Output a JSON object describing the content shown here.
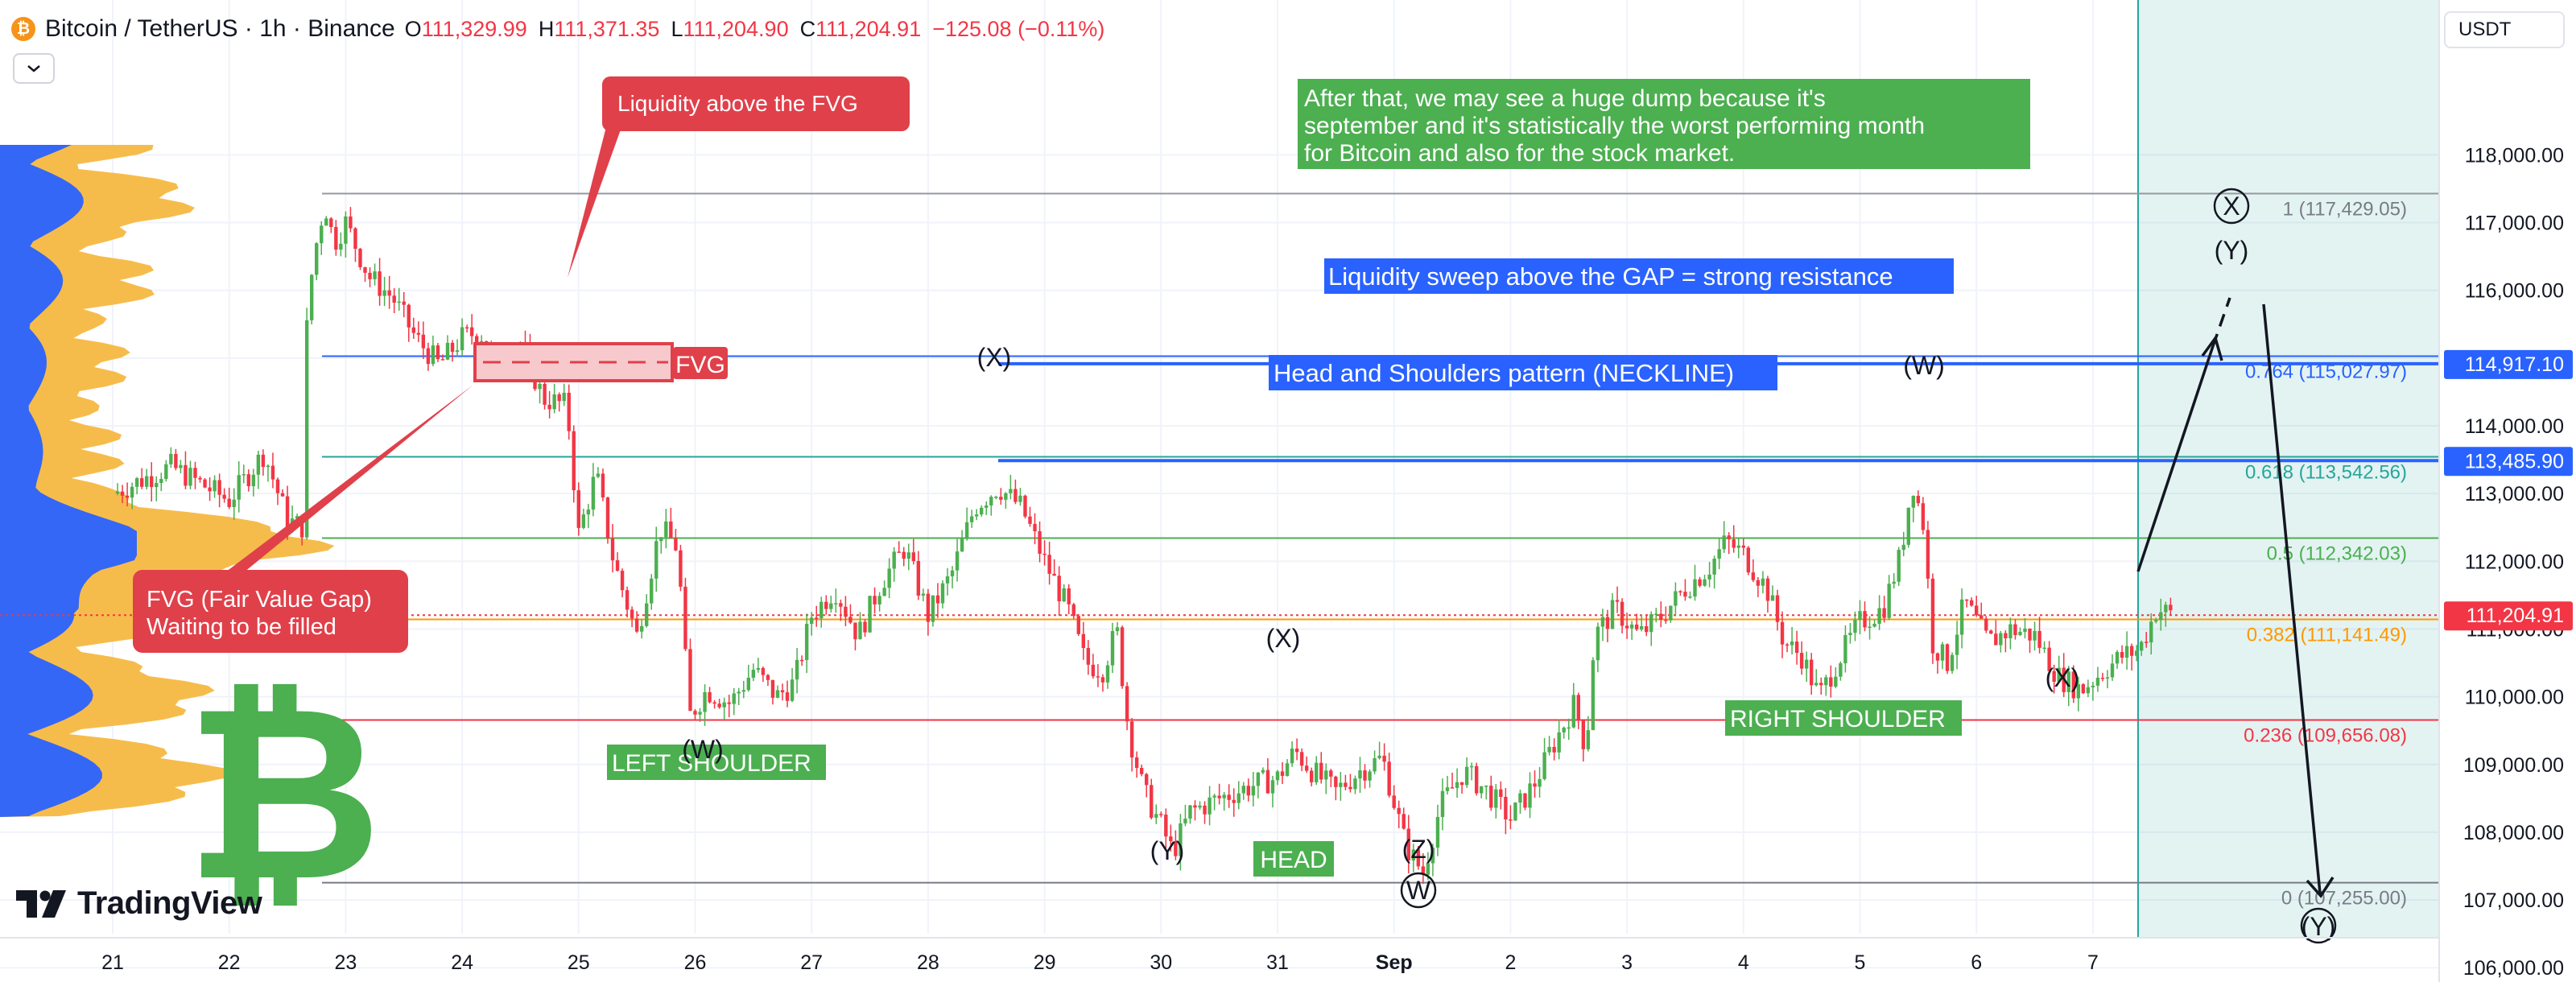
{
  "header": {
    "symbol_title": "Bitcoin / TetherUS · 1h · Binance",
    "symbol_icon": "bitcoin-icon",
    "ohlc": [
      {
        "key": "O",
        "value": "111,329.99"
      },
      {
        "key": "H",
        "value": "111,371.35"
      },
      {
        "key": "L",
        "value": "111,204.90"
      },
      {
        "key": "C",
        "value": "111,204.91"
      }
    ],
    "change": "−125.08 (−0.11%)"
  },
  "currency_label": "USDT",
  "logo_text": "TradingView",
  "colors": {
    "up": "#4caf50",
    "down": "#f23645",
    "blue": "#2962ff",
    "green_box": "#4caf50",
    "red_box": "#e0404a",
    "orange": "#f7931a",
    "profile_blue": "#2962ff",
    "profile_orange": "#f5b841"
  },
  "chart_data": {
    "type": "candlestick",
    "symbol": "BTCUSDT",
    "interval": "1h",
    "ylim": [
      105500,
      119000
    ],
    "y_ticks": [
      "118,000.00",
      "117,000.00",
      "116,000.00",
      "115,000.00",
      "114,000.00",
      "113,000.00",
      "112,000.00",
      "111,000.00",
      "110,000.00",
      "109,000.00",
      "108,000.00",
      "107,000.00",
      "106,000.00"
    ],
    "y_tick_values": [
      118000,
      117000,
      116000,
      115000,
      114000,
      113000,
      112000,
      111000,
      110000,
      109000,
      108000,
      107000,
      106000
    ],
    "x_ticks": [
      {
        "label": "21",
        "day": 21
      },
      {
        "label": "22",
        "day": 22
      },
      {
        "label": "23",
        "day": 23
      },
      {
        "label": "24",
        "day": 24
      },
      {
        "label": "25",
        "day": 25
      },
      {
        "label": "26",
        "day": 26
      },
      {
        "label": "27",
        "day": 27
      },
      {
        "label": "28",
        "day": 28
      },
      {
        "label": "29",
        "day": 29
      },
      {
        "label": "30",
        "day": 30
      },
      {
        "label": "31",
        "day": 31
      },
      {
        "label": "Sep",
        "day": 32,
        "bold": true
      },
      {
        "label": "2",
        "day": 33
      },
      {
        "label": "3",
        "day": 34
      },
      {
        "label": "4",
        "day": 35
      },
      {
        "label": "5",
        "day": 36
      },
      {
        "label": "6",
        "day": 37
      },
      {
        "label": "7",
        "day": 38
      }
    ],
    "price_path": [
      [
        21.0,
        113000
      ],
      [
        21.5,
        113400
      ],
      [
        22.0,
        112900
      ],
      [
        22.3,
        113600
      ],
      [
        22.5,
        112600
      ],
      [
        22.64,
        112500
      ],
      [
        22.67,
        115800
      ],
      [
        22.75,
        116700
      ],
      [
        22.82,
        117300
      ],
      [
        22.9,
        116700
      ],
      [
        23.0,
        117000
      ],
      [
        23.2,
        116200
      ],
      [
        23.4,
        115900
      ],
      [
        23.6,
        115300
      ],
      [
        23.8,
        114900
      ],
      [
        24.0,
        115300
      ],
      [
        24.15,
        115400
      ],
      [
        24.3,
        114900
      ],
      [
        24.5,
        115200
      ],
      [
        24.7,
        114400
      ],
      [
        24.9,
        114300
      ],
      [
        25.0,
        112400
      ],
      [
        25.15,
        113300
      ],
      [
        25.3,
        112000
      ],
      [
        25.5,
        110900
      ],
      [
        25.7,
        112500
      ],
      [
        25.85,
        112200
      ],
      [
        25.95,
        109700
      ],
      [
        26.1,
        110100
      ],
      [
        26.3,
        109900
      ],
      [
        26.5,
        110400
      ],
      [
        26.7,
        110000
      ],
      [
        26.85,
        110200
      ],
      [
        27.0,
        111200
      ],
      [
        27.2,
        111600
      ],
      [
        27.4,
        110900
      ],
      [
        27.6,
        111700
      ],
      [
        27.8,
        112200
      ],
      [
        28.0,
        111200
      ],
      [
        28.2,
        111800
      ],
      [
        28.4,
        112800
      ],
      [
        28.6,
        113100
      ],
      [
        28.8,
        112800
      ],
      [
        29.0,
        112000
      ],
      [
        29.2,
        111300
      ],
      [
        29.35,
        110500
      ],
      [
        29.5,
        110400
      ],
      [
        29.62,
        111000
      ],
      [
        29.72,
        109500
      ],
      [
        29.85,
        108600
      ],
      [
        30.0,
        108100
      ],
      [
        30.1,
        107700
      ],
      [
        30.25,
        108300
      ],
      [
        30.5,
        108500
      ],
      [
        30.8,
        108700
      ],
      [
        31.0,
        108800
      ],
      [
        31.15,
        109200
      ],
      [
        31.3,
        108900
      ],
      [
        31.5,
        108600
      ],
      [
        31.7,
        108900
      ],
      [
        31.9,
        109100
      ],
      [
        32.1,
        107800
      ],
      [
        32.25,
        107400
      ],
      [
        32.4,
        108400
      ],
      [
        32.6,
        108900
      ],
      [
        32.8,
        108600
      ],
      [
        33.0,
        108200
      ],
      [
        33.2,
        108700
      ],
      [
        33.4,
        109400
      ],
      [
        33.55,
        109900
      ],
      [
        33.65,
        109200
      ],
      [
        33.72,
        110900
      ],
      [
        33.9,
        111300
      ],
      [
        34.1,
        110900
      ],
      [
        34.3,
        111200
      ],
      [
        34.5,
        111600
      ],
      [
        34.7,
        111900
      ],
      [
        34.85,
        112300
      ],
      [
        35.0,
        112100
      ],
      [
        35.2,
        111600
      ],
      [
        35.35,
        110800
      ],
      [
        35.5,
        110600
      ],
      [
        35.65,
        110000
      ],
      [
        35.8,
        110500
      ],
      [
        36.0,
        111100
      ],
      [
        36.2,
        111300
      ],
      [
        36.35,
        112100
      ],
      [
        36.45,
        113200
      ],
      [
        36.55,
        112500
      ],
      [
        36.62,
        110800
      ],
      [
        36.75,
        110500
      ],
      [
        36.9,
        111400
      ],
      [
        37.1,
        110800
      ],
      [
        37.3,
        111000
      ],
      [
        37.5,
        110900
      ],
      [
        37.7,
        110300
      ],
      [
        37.9,
        110100
      ],
      [
        38.1,
        110400
      ],
      [
        38.25,
        110600
      ],
      [
        38.4,
        110700
      ],
      [
        38.55,
        111300
      ],
      [
        38.7,
        111200
      ]
    ],
    "horizontal_lines": [
      {
        "price": 117429.05,
        "color": "#9598a1",
        "label": "1 (117,429.05)",
        "label_color": "#787b86"
      },
      {
        "price": 115027.97,
        "color": "#2962ff",
        "label": "0.764 (115,027.97)",
        "label_color": "#2962ff"
      },
      {
        "price": 114917.1,
        "color": "#2962ff",
        "badge": "114,917.10"
      },
      {
        "price": 113542.56,
        "color": "#26a69a",
        "label": "0.618 (113,542.56)",
        "label_color": "#26a69a"
      },
      {
        "price": 113485.9,
        "color": "#2962ff",
        "badge": "113,485.90"
      },
      {
        "price": 112342.03,
        "color": "#4caf50",
        "label": "0.5 (112,342.03)",
        "label_color": "#4caf50"
      },
      {
        "price": 111141.49,
        "color": "#ff9800",
        "label": "0.382 (111,141.49)",
        "label_color": "#ff9800"
      },
      {
        "price": 109656.08,
        "color": "#f23645",
        "label": "0.236 (109,656.08)",
        "label_color": "#f23645"
      },
      {
        "price": 107255.0,
        "color": "#787b86",
        "label": "0 (107,255.00)",
        "label_color": "#787b86"
      }
    ],
    "current_price": {
      "price": 111204.91,
      "label": "111,204.91"
    },
    "annotations": {
      "liquidity_fvg": "Liquidity above the FVG",
      "fvg_label": "FVG",
      "fvg_callout_line1": "FVG (Fair Value Gap)",
      "fvg_callout_line2": "Waiting to be filled",
      "dump_text_1": "After that, we may see a huge dump because it's",
      "dump_text_2": "september and it's statistically the worst performing month",
      "dump_text_3": "for Bitcoin and also for the stock market.",
      "liquidity_sweep": "Liquidity sweep above the GAP = strong resistance",
      "neckline": "Head and Shoulders pattern (NECKLINE)",
      "left_shoulder": "LEFT SHOULDER",
      "head": "HEAD",
      "right_shoulder": "RIGHT SHOULDER",
      "wave_x1": "(X)",
      "wave_w1": "(W)",
      "wave_y1": "(Y)",
      "wave_x2": "(X)",
      "wave_z": "(Z)",
      "wave_w_circle": "W",
      "wave_w2": "(W)",
      "wave_x3": "(X)",
      "wave_x_circle": "X",
      "wave_y2": "(Y)",
      "wave_y_bottom": "(Y)"
    }
  }
}
